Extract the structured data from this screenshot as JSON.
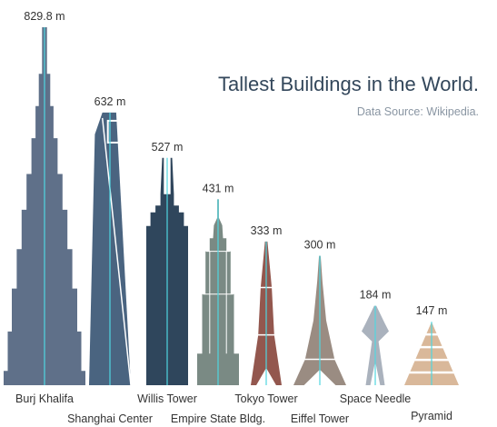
{
  "chart_data": {
    "type": "bar",
    "title": "Tallest Buildings in the World.",
    "subtitle": "Data Source: Wikipedia.",
    "unit": "m",
    "categories": [
      "Burj Khalifa",
      "Shanghai Center",
      "Willis Tower",
      "Empire State Bldg.",
      "Tokyo Tower",
      "Eiffel Tower",
      "Space Needle",
      "Pyramid"
    ],
    "values": [
      829.8,
      632,
      527,
      431,
      333,
      300,
      184,
      147
    ],
    "value_labels": [
      "829.8 m",
      "632 m",
      "527 m",
      "431 m",
      "333 m",
      "300 m",
      "184 m",
      "147 m"
    ],
    "ylim": [
      0,
      829.8
    ],
    "grid": false,
    "legend": "none",
    "colors": {
      "burj": "#5f7089",
      "shanghai": "#4a6480",
      "willis": "#2f465c",
      "empire": "#7a8a84",
      "tokyo": "#93574e",
      "eiffel": "#9a8c82",
      "needle": "#aab2bd",
      "pyramid": "#d9b89a",
      "axis_line": "#4fd6e0",
      "title": "#33475b",
      "subtitle": "#8a96a3",
      "label": "#333333"
    }
  }
}
